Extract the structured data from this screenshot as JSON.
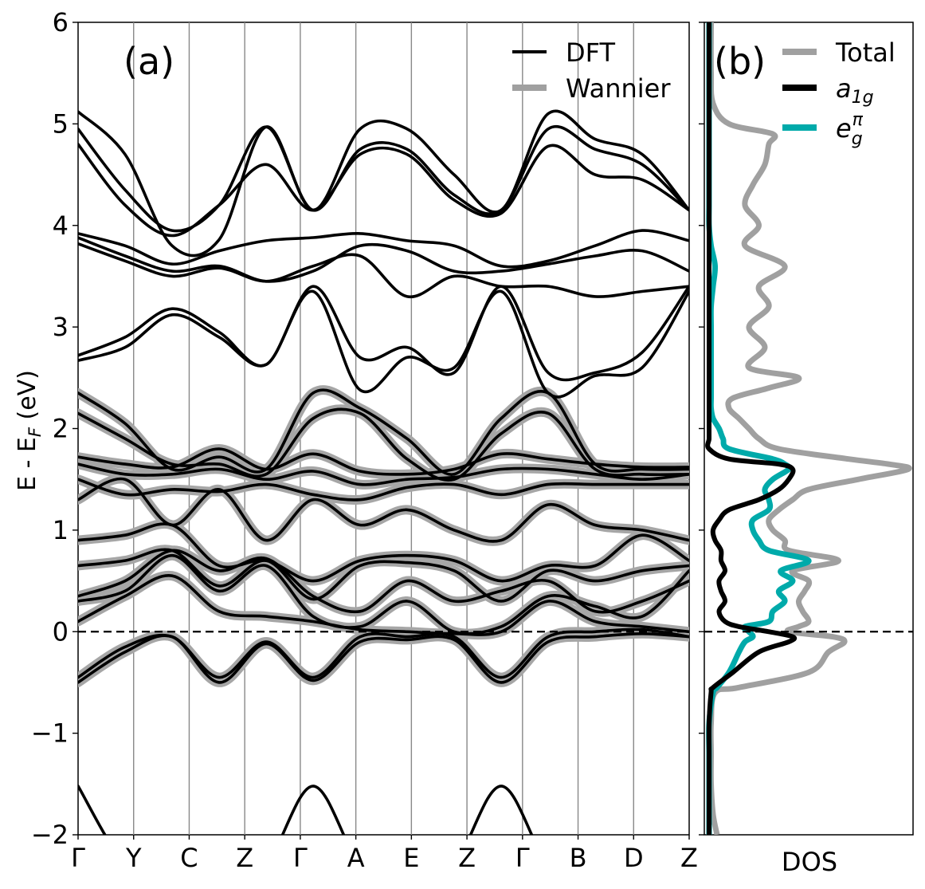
{
  "chart_data": [
    {
      "panel": "(a)",
      "type": "line",
      "ylabel_text": "E - E",
      "ylabel_sub": "F",
      "ylabel_unit": " (eV)",
      "ylim": [
        -2,
        6
      ],
      "yticks": [
        -2,
        -1,
        0,
        1,
        2,
        3,
        4,
        5,
        6
      ],
      "ytick_labels": [
        "−2",
        "−1",
        "0",
        "1",
        "2",
        "3",
        "4",
        "5",
        "6"
      ],
      "kpoints": [
        "Γ",
        "Y",
        "C",
        "Z",
        "Γ",
        "A",
        "E",
        "Z",
        "Γ",
        "B",
        "D",
        "Z"
      ],
      "fermi_level": 0,
      "legend": [
        {
          "name": "DFT",
          "color": "#000000"
        },
        {
          "name": "Wannier",
          "color": "#a0a0a0"
        }
      ],
      "legend_position": "top-right",
      "bands_dft": [
        [
          5.12,
          4.7,
          3.8,
          3.86,
          4.97,
          4.15,
          4.95,
          4.95,
          4.5,
          4.15,
          5.1,
          4.85,
          4.7,
          4.15
        ],
        [
          4.95,
          4.35,
          3.95,
          4.2,
          4.97,
          4.15,
          4.75,
          4.75,
          4.3,
          4.15,
          4.95,
          4.75,
          4.6,
          4.15
        ],
        [
          4.8,
          4.2,
          3.9,
          4.2,
          4.6,
          4.15,
          4.7,
          4.7,
          4.25,
          4.12,
          4.78,
          4.5,
          4.45,
          4.15
        ],
        [
          3.92,
          3.8,
          3.62,
          3.75,
          3.85,
          3.88,
          3.92,
          3.85,
          3.8,
          3.6,
          3.65,
          3.8,
          3.95,
          3.85
        ],
        [
          3.88,
          3.7,
          3.55,
          3.6,
          3.45,
          3.55,
          3.8,
          3.75,
          3.55,
          3.55,
          3.62,
          3.7,
          3.75,
          3.55
        ],
        [
          3.82,
          3.65,
          3.5,
          3.58,
          3.45,
          3.6,
          3.7,
          3.3,
          3.5,
          3.4,
          3.4,
          3.3,
          3.35,
          3.4
        ],
        [
          2.72,
          2.9,
          3.18,
          2.95,
          2.63,
          3.4,
          2.7,
          2.8,
          2.55,
          3.4,
          2.55,
          2.55,
          2.75,
          3.4
        ],
        [
          2.67,
          2.8,
          3.12,
          2.9,
          2.63,
          3.35,
          2.38,
          2.7,
          2.6,
          3.35,
          2.35,
          2.52,
          2.6,
          3.35
        ]
      ],
      "bands_wannier_dft": [
        [
          2.35,
          2.05,
          1.6,
          1.72,
          1.6,
          2.35,
          2.2,
          1.9,
          1.55,
          2.1,
          2.35,
          1.65,
          1.6,
          1.6
        ],
        [
          2.15,
          1.9,
          1.65,
          1.65,
          1.55,
          2.1,
          2.15,
          1.7,
          1.5,
          1.95,
          2.15,
          1.6,
          1.55,
          1.55
        ],
        [
          1.72,
          1.65,
          1.62,
          1.8,
          1.6,
          1.75,
          1.58,
          1.55,
          1.6,
          1.75,
          1.7,
          1.65,
          1.62,
          1.62
        ],
        [
          1.65,
          1.55,
          1.55,
          1.6,
          1.5,
          1.58,
          1.45,
          1.5,
          1.52,
          1.6,
          1.6,
          1.55,
          1.5,
          1.55
        ],
        [
          1.5,
          1.35,
          1.4,
          1.38,
          1.45,
          1.35,
          1.3,
          1.42,
          1.45,
          1.35,
          1.45,
          1.45,
          1.45,
          1.45
        ],
        [
          1.3,
          1.5,
          1.05,
          1.4,
          0.9,
          1.3,
          1.05,
          1.2,
          1.0,
          0.9,
          1.25,
          1.05,
          1.0,
          0.9
        ],
        [
          0.9,
          0.95,
          1.05,
          0.65,
          0.7,
          0.5,
          0.7,
          0.75,
          0.7,
          0.5,
          0.65,
          0.65,
          0.95,
          0.7
        ],
        [
          0.65,
          0.7,
          0.8,
          0.45,
          0.7,
          0.32,
          0.65,
          0.68,
          0.6,
          0.3,
          0.6,
          0.5,
          0.6,
          0.65
        ],
        [
          0.35,
          0.5,
          0.8,
          0.6,
          0.72,
          0.35,
          0.2,
          0.5,
          0.3,
          0.4,
          0.5,
          0.2,
          0.3,
          0.5
        ],
        [
          0.3,
          0.4,
          0.75,
          0.4,
          0.65,
          0.15,
          0.05,
          0.3,
          0.0,
          0.05,
          0.35,
          0.25,
          0.15,
          0.6
        ],
        [
          0.1,
          0.35,
          0.55,
          0.2,
          0.15,
          0.1,
          0.02,
          0.0,
          -0.02,
          0.0,
          0.3,
          0.1,
          0.05,
          0.0
        ],
        [
          -0.45,
          -0.15,
          -0.05,
          -0.45,
          -0.1,
          -0.45,
          -0.05,
          -0.05,
          -0.05,
          -0.45,
          -0.05,
          0.0,
          0.02,
          -0.05
        ],
        [
          -0.5,
          -0.2,
          -0.05,
          -0.5,
          -0.12,
          -0.48,
          -0.1,
          -0.08,
          -0.08,
          -0.5,
          -0.1,
          -0.05,
          -0.02,
          -0.05
        ]
      ],
      "bands_deep": [
        [
          -1.52,
          -2.3,
          -2.6,
          -2.6,
          -2.3,
          -1.52,
          -2.3,
          -2.6,
          -2.3,
          -1.52,
          -2.3,
          -2.6,
          -2.6,
          -2.6
        ]
      ]
    },
    {
      "panel": "(b)",
      "type": "line",
      "xlabel": "DOS",
      "ylim": [
        -2,
        6
      ],
      "legend": [
        {
          "name": "Total",
          "color": "#a0a0a0"
        },
        {
          "name": "a",
          "sub": "1g",
          "color": "#000000"
        },
        {
          "name": "e",
          "sub": "g",
          "sup": "π",
          "color": "#00aaaa"
        }
      ],
      "legend_position": "top-right",
      "energy": [
        -2.0,
        -1.8,
        -1.5,
        -1.2,
        -0.9,
        -0.6,
        -0.55,
        -0.4,
        -0.2,
        -0.1,
        -0.05,
        0.0,
        0.05,
        0.1,
        0.2,
        0.3,
        0.4,
        0.5,
        0.6,
        0.7,
        0.8,
        0.9,
        1.0,
        1.1,
        1.2,
        1.3,
        1.4,
        1.5,
        1.6,
        1.65,
        1.7,
        1.8,
        1.9,
        2.0,
        2.1,
        2.2,
        2.3,
        2.4,
        2.5,
        2.6,
        2.8,
        3.0,
        3.2,
        3.4,
        3.6,
        3.8,
        4.0,
        4.2,
        4.4,
        4.6,
        4.8,
        4.9,
        5.0,
        5.2,
        5.5,
        6.0
      ],
      "total": [
        0.04,
        0.02,
        0.01,
        0.01,
        0.01,
        0.03,
        0.15,
        0.5,
        0.6,
        0.68,
        0.62,
        0.4,
        0.45,
        0.5,
        0.47,
        0.45,
        0.48,
        0.5,
        0.42,
        0.65,
        0.4,
        0.38,
        0.32,
        0.3,
        0.35,
        0.42,
        0.5,
        0.75,
        1.0,
        0.9,
        0.7,
        0.35,
        0.25,
        0.2,
        0.15,
        0.1,
        0.12,
        0.3,
        0.45,
        0.2,
        0.28,
        0.2,
        0.3,
        0.25,
        0.38,
        0.18,
        0.25,
        0.18,
        0.22,
        0.28,
        0.3,
        0.32,
        0.1,
        0.02,
        0.01,
        0.01
      ],
      "a1g": [
        0.0,
        0.0,
        0.0,
        0.0,
        0.0,
        0.01,
        0.02,
        0.12,
        0.25,
        0.4,
        0.42,
        0.3,
        0.15,
        0.08,
        0.05,
        0.08,
        0.06,
        0.05,
        0.08,
        0.06,
        0.06,
        0.03,
        0.02,
        0.05,
        0.1,
        0.25,
        0.35,
        0.4,
        0.42,
        0.35,
        0.1,
        0.0,
        0.0,
        0.0,
        0.0,
        0.0,
        0.0,
        0.0,
        0.0,
        0.0,
        0.0,
        0.0,
        0.0,
        0.0,
        0.0,
        0.0,
        0.0,
        0.0,
        0.0,
        0.0,
        0.0,
        0.0,
        0.0,
        0.0,
        0.0,
        0.0
      ],
      "eg_pi": [
        0.0,
        0.0,
        0.0,
        0.0,
        0.0,
        0.02,
        0.04,
        0.1,
        0.15,
        0.18,
        0.22,
        0.2,
        0.18,
        0.3,
        0.32,
        0.38,
        0.35,
        0.42,
        0.36,
        0.5,
        0.3,
        0.25,
        0.22,
        0.22,
        0.3,
        0.3,
        0.28,
        0.32,
        0.4,
        0.38,
        0.32,
        0.1,
        0.07,
        0.05,
        0.02,
        0.01,
        0.01,
        0.01,
        0.01,
        0.01,
        0.01,
        0.01,
        0.01,
        0.02,
        0.03,
        0.01,
        0.0,
        0.0,
        0.0,
        0.0,
        0.0,
        0.0,
        0.0,
        0.0,
        0.0,
        0.0
      ]
    }
  ]
}
